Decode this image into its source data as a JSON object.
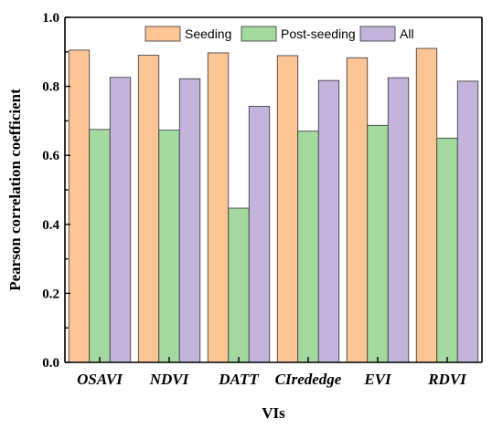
{
  "chart_data": {
    "type": "bar",
    "categories": [
      "OSAVI",
      "NDVI",
      "DATT",
      "CIrededge",
      "EVI",
      "RDVI"
    ],
    "series": [
      {
        "name": "Seeding",
        "values": [
          0.905,
          0.89,
          0.897,
          0.889,
          0.883,
          0.91
        ],
        "color": "#fbc595"
      },
      {
        "name": "Post-seeding",
        "values": [
          0.675,
          0.673,
          0.447,
          0.67,
          0.687,
          0.65
        ],
        "color": "#a4d9a0"
      },
      {
        "name": "All",
        "values": [
          0.826,
          0.822,
          0.742,
          0.817,
          0.825,
          0.815
        ],
        "color": "#c2b4da"
      }
    ],
    "xlabel": "VIs",
    "ylabel": "Pearson correlation coefficient",
    "ylim": [
      0,
      1.0
    ],
    "yticks": [
      "0.0",
      "0.2",
      "0.4",
      "0.6",
      "0.8",
      "1.0"
    ],
    "legend": "top",
    "grid": false
  }
}
